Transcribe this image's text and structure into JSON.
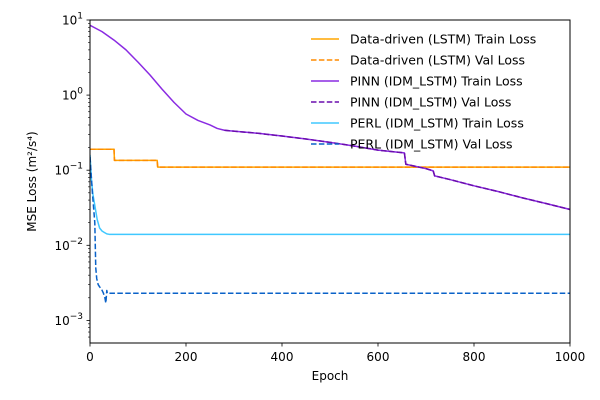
{
  "chart_data": {
    "type": "line",
    "title": "",
    "xlabel": "Epoch",
    "ylabel": "MSE Loss (m²/s⁴)",
    "xlim": [
      0,
      1000
    ],
    "ylim": [
      0.0005,
      10
    ],
    "yscale": "log",
    "grid": false,
    "legend": "top-right",
    "x_ticks": [
      0,
      200,
      400,
      600,
      800,
      1000
    ],
    "y_ticks": [
      {
        "value": 0.001,
        "base": "10",
        "exp": "−3"
      },
      {
        "value": 0.01,
        "base": "10",
        "exp": "−2"
      },
      {
        "value": 0.1,
        "base": "10",
        "exp": "−1"
      },
      {
        "value": 1,
        "base": "10",
        "exp": "0"
      },
      {
        "value": 10,
        "base": "10",
        "exp": "1"
      }
    ],
    "series": [
      {
        "name": "Data-driven (LSTM) Train Loss",
        "color": "#ffa500",
        "dash": "solid",
        "x": [
          0,
          50,
          51,
          140,
          141,
          300,
          500,
          700,
          1000
        ],
        "y": [
          0.19,
          0.19,
          0.135,
          0.135,
          0.11,
          0.11,
          0.11,
          0.11,
          0.11
        ]
      },
      {
        "name": "Data-driven (LSTM) Val Loss",
        "color": "#ff8c00",
        "dash": "dashed",
        "x": [
          0,
          50,
          51,
          140,
          141,
          300,
          500,
          700,
          1000
        ],
        "y": [
          0.19,
          0.19,
          0.135,
          0.135,
          0.11,
          0.11,
          0.11,
          0.11,
          0.11
        ]
      },
      {
        "name": "PINN (IDM_LSTM) Train Loss",
        "color": "#8a2be2",
        "dash": "solid",
        "x": [
          0,
          25,
          50,
          75,
          100,
          125,
          150,
          175,
          200,
          225,
          250,
          265,
          280,
          290,
          350,
          400,
          450,
          500,
          550,
          600,
          655,
          658,
          700,
          715,
          718,
          750,
          800,
          850,
          900,
          950,
          1000
        ],
        "y": [
          8.5,
          7.0,
          5.4,
          4.0,
          2.75,
          1.85,
          1.2,
          0.8,
          0.56,
          0.46,
          0.4,
          0.36,
          0.34,
          0.335,
          0.31,
          0.285,
          0.26,
          0.235,
          0.21,
          0.185,
          0.17,
          0.12,
          0.105,
          0.098,
          0.084,
          0.075,
          0.062,
          0.052,
          0.043,
          0.036,
          0.03
        ]
      },
      {
        "name": "PINN (IDM_LSTM) Val Loss",
        "color": "#6a0dad",
        "dash": "dashed",
        "x": [
          280,
          290,
          350,
          400,
          450,
          500,
          550,
          600,
          655,
          658,
          700,
          715,
          718,
          750,
          800,
          850,
          900,
          950,
          1000
        ],
        "y": [
          0.34,
          0.335,
          0.31,
          0.285,
          0.26,
          0.235,
          0.21,
          0.185,
          0.17,
          0.12,
          0.105,
          0.098,
          0.084,
          0.075,
          0.062,
          0.052,
          0.043,
          0.036,
          0.03
        ]
      },
      {
        "name": "PERL (IDM_LSTM) Train Loss",
        "color": "#40c8ff",
        "dash": "solid",
        "x": [
          0,
          3,
          6,
          10,
          15,
          20,
          25,
          30,
          35,
          40,
          100,
          300,
          600,
          1000
        ],
        "y": [
          0.16,
          0.075,
          0.048,
          0.034,
          0.022,
          0.017,
          0.0155,
          0.0148,
          0.0142,
          0.014,
          0.014,
          0.014,
          0.014,
          0.014
        ]
      },
      {
        "name": "PERL (IDM_LSTM) Val Loss",
        "color": "#0a62c8",
        "dash": "dashed",
        "x": [
          0,
          5,
          10,
          12,
          14,
          17,
          20,
          24,
          28,
          31,
          33,
          35,
          36,
          37,
          50,
          200,
          500,
          1000
        ],
        "y": [
          0.15,
          0.05,
          0.02,
          0.005,
          0.0036,
          0.003,
          0.0028,
          0.0026,
          0.0023,
          0.002,
          0.0017,
          0.0025,
          0.0023,
          0.0023,
          0.0023,
          0.0023,
          0.0023,
          0.0023
        ]
      }
    ]
  }
}
